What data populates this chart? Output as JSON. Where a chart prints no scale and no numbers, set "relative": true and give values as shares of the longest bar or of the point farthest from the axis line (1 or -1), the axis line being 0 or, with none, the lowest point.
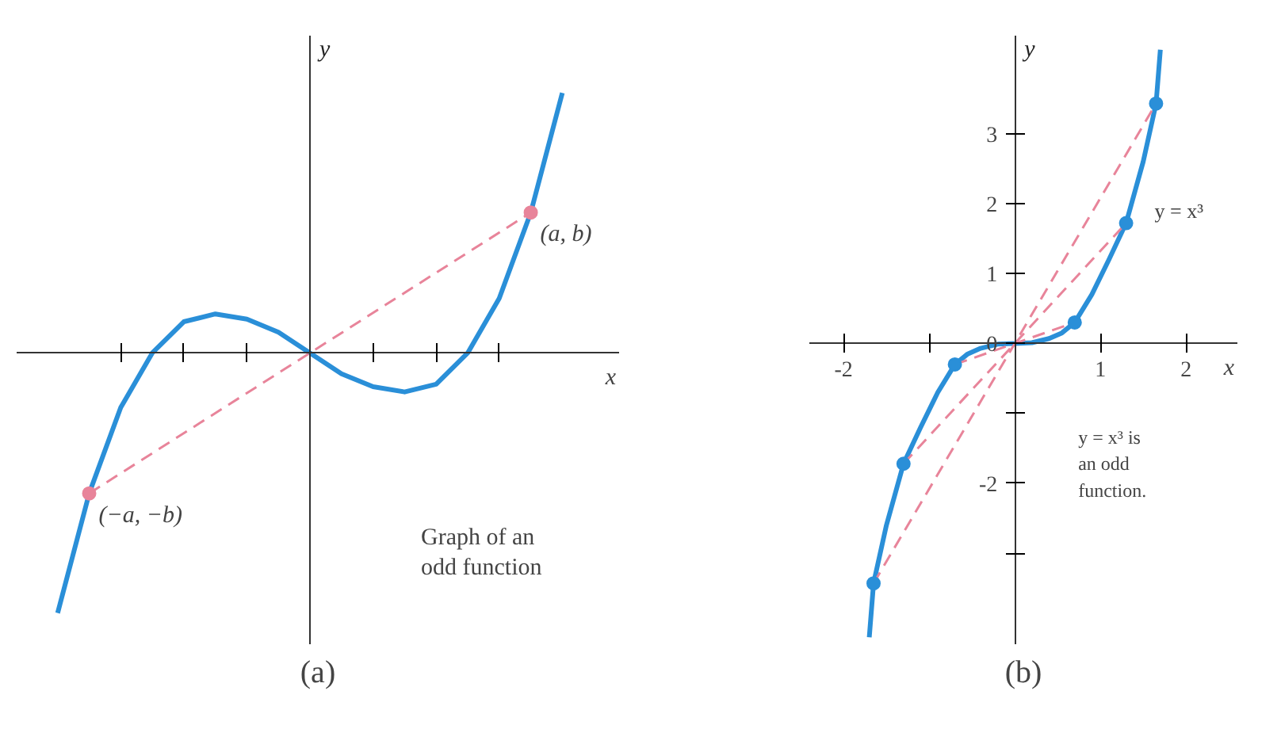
{
  "chart_data": [
    {
      "type": "line",
      "title": "(a)",
      "xlabel": "x",
      "ylabel": "y",
      "relative": true,
      "grid": false,
      "categories": [
        null,
        null,
        null,
        null,
        null,
        null,
        null,
        null,
        null,
        null,
        null,
        null,
        null,
        null,
        null,
        null,
        null
      ],
      "annotations": [
        "(a, b)",
        "(−a, −b)",
        "Graph of an odd function"
      ],
      "series": [
        {
          "color": "#2a8fd8",
          "line_style": "solid",
          "values": [
            -1,
            -0.54,
            -0.21,
            0,
            0.12,
            0.15,
            0.13,
            0.08,
            0,
            -0.08,
            -0.13,
            -0.15,
            -0.12,
            0,
            0.21,
            0.54,
            1
          ]
        },
        {
          "color": "#e8849a",
          "line_style": "dashed",
          "marker": "circle",
          "values": [
            null,
            -0.54,
            null,
            null,
            null,
            null,
            null,
            null,
            null,
            null,
            null,
            null,
            null,
            null,
            null,
            0.54,
            null
          ]
        }
      ]
    },
    {
      "type": "line",
      "title": "(b)",
      "xlabel": "x",
      "ylabel": "y",
      "grid": false,
      "xlim": [
        -2.4,
        2.6
      ],
      "ylim": [
        -4.3,
        4.4
      ],
      "xticks": [
        -2,
        {
          "value": -1,
          "label": null
        },
        1,
        2
      ],
      "yticks": [
        {
          "value": -3,
          "label": null
        },
        -2,
        {
          "value": -1,
          "label": null
        },
        0,
        1,
        2,
        3
      ],
      "annotations": [
        "y = x³ is an odd function."
      ],
      "series": [
        {
          "name": "y = x³",
          "color": "#2a8fd8",
          "line_style": "solid",
          "x": [
            -1.7,
            -1.65,
            -1.5,
            -1.3,
            -1.1,
            -0.9,
            -0.7,
            -0.55,
            -0.4,
            -0.2,
            0,
            0.2,
            0.4,
            0.55,
            0.7,
            0.9,
            1.1,
            1.3,
            1.5,
            1.65,
            1.7
          ],
          "values": [
            -4.2,
            -3.43,
            -2.6,
            -1.72,
            -1.2,
            -0.7,
            -0.3,
            -0.15,
            -0.07,
            -0.01,
            0,
            0.01,
            0.07,
            0.15,
            0.3,
            0.7,
            1.2,
            1.72,
            2.6,
            3.43,
            4.2
          ]
        },
        {
          "color": "#e8849a",
          "line_style": "dashed",
          "x": [
            -1.65,
            1.65
          ],
          "values": [
            -3.43,
            3.43
          ]
        },
        {
          "color": "#e8849a",
          "line_style": "dashed",
          "x": [
            -1.3,
            1.3
          ],
          "values": [
            -1.72,
            1.72
          ]
        },
        {
          "color": "#e8849a",
          "line_style": "dashed",
          "x": [
            -0.7,
            0.7
          ],
          "values": [
            -0.3,
            0.3
          ]
        },
        {
          "type": "scatter",
          "marker": "circle",
          "color": "#2a8fd8",
          "x": [
            -1.65,
            -1.3,
            -0.7,
            0.7,
            1.3,
            1.65
          ],
          "values": [
            -3.43,
            -1.72,
            -0.3,
            0.3,
            1.72,
            3.43
          ]
        }
      ]
    }
  ]
}
